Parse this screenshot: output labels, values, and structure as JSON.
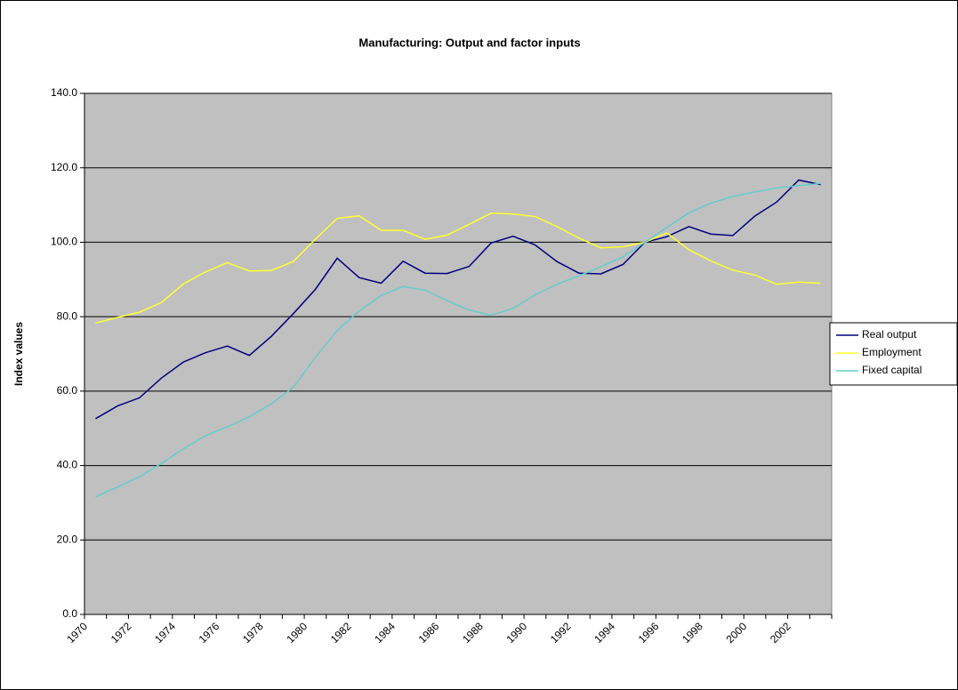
{
  "chart_data": {
    "type": "line",
    "title": "Manufacturing: Output and factor inputs",
    "y_label": "Index values",
    "categories": [
      "1970",
      null,
      "1972",
      null,
      "1974",
      null,
      "1976",
      null,
      "1978",
      null,
      "1980",
      null,
      "1982",
      null,
      "1984",
      null,
      "1986",
      null,
      "1988",
      null,
      "1990",
      null,
      "1992",
      null,
      "1994",
      null,
      "1996",
      null,
      "1998",
      null,
      "2000",
      null,
      "2002",
      null
    ],
    "series": [
      {
        "name": "Real output",
        "color": "#000080",
        "values": [
          52.6,
          56,
          58.2,
          63.5,
          67.8,
          70.3,
          72.1,
          69.6,
          74.7,
          80.8,
          87.3,
          95.7,
          90.5,
          89,
          94.9,
          91.7,
          91.6,
          93.5,
          99.8,
          101.6,
          99.3,
          94.8,
          91.7,
          91.5,
          94,
          100,
          101.5,
          104.2,
          102.2,
          101.8,
          107,
          110.8,
          116.7,
          115.5
        ]
      },
      {
        "name": "Employment",
        "color": "#ffff33",
        "values": [
          78.3,
          79.8,
          81.2,
          83.8,
          88.8,
          92,
          94.5,
          92.3,
          92.4,
          94.8,
          100.8,
          106.4,
          107.1,
          103.2,
          103.2,
          100.8,
          101.9,
          104.8,
          107.8,
          107.6,
          106.9,
          104.2,
          101.1,
          98.5,
          98.8,
          100,
          102.5,
          98,
          95,
          92.5,
          91.2,
          88.7,
          89.3,
          89
        ]
      },
      {
        "name": "Fixed capital",
        "color": "#66cccc",
        "values": [
          31.6,
          34.2,
          37,
          40.6,
          44.5,
          48,
          50.4,
          53.1,
          56.6,
          61,
          69,
          76.3,
          81.5,
          85.7,
          88.1,
          87.1,
          84.3,
          81.8,
          80.4,
          82.2,
          85.9,
          88.7,
          91,
          93.4,
          96.1,
          100,
          104,
          107.9,
          110.5,
          112.3,
          113.5,
          114.6,
          115.2,
          115.8
        ]
      }
    ],
    "ylim": [
      0,
      140
    ],
    "yticks": [
      {
        "value": 0,
        "label": "0.0"
      },
      {
        "value": 20,
        "label": "20.0"
      },
      {
        "value": 40,
        "label": "40.0"
      },
      {
        "value": 60,
        "label": "60.0"
      },
      {
        "value": 80,
        "label": "80.0"
      },
      {
        "value": 100,
        "label": "100.0"
      },
      {
        "value": 120,
        "label": "120.0"
      },
      {
        "value": 140,
        "label": "140.0"
      }
    ],
    "grid": true,
    "plot_background": "#c0c0c0",
    "legend": "right"
  }
}
